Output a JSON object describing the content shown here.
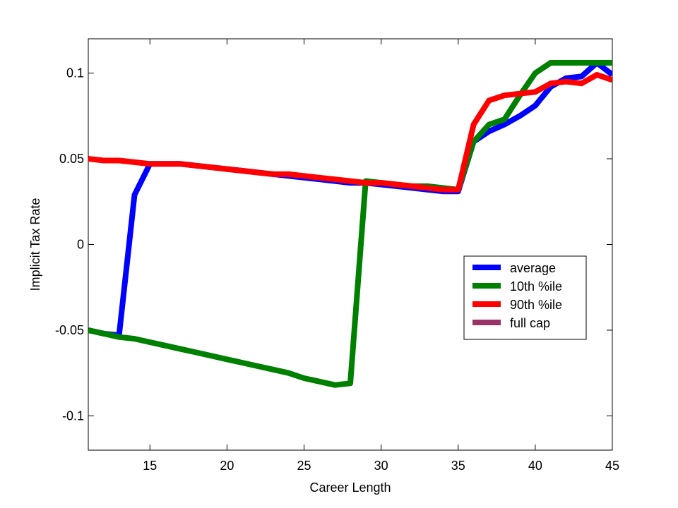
{
  "chart_data": {
    "type": "line",
    "xlabel": "Career Length",
    "ylabel": "Implicit Tax Rate",
    "xlim": [
      11,
      45
    ],
    "ylim": [
      -0.12,
      0.12
    ],
    "xticks": [
      15,
      20,
      25,
      30,
      35,
      40,
      45
    ],
    "xtick_labels": [
      "15",
      "20",
      "25",
      "30",
      "35",
      "40",
      "45"
    ],
    "yticks": [
      0.1,
      0.05,
      0,
      -0.05,
      -0.1
    ],
    "ytick_labels": [
      "0.1",
      "0.05",
      "0",
      "-0.05",
      "-0.1"
    ],
    "grid": false,
    "legend_position": "right, lower-middle",
    "series": [
      {
        "name": "average",
        "color": "#0000ff",
        "points": [
          [
            11,
            -0.05
          ],
          [
            12,
            -0.052
          ],
          [
            13,
            -0.053
          ],
          [
            14,
            0.029
          ],
          [
            15,
            0.047
          ],
          [
            16,
            0.047
          ],
          [
            17,
            0.047
          ],
          [
            18,
            0.046
          ],
          [
            19,
            0.045
          ],
          [
            20,
            0.044
          ],
          [
            21,
            0.043
          ],
          [
            22,
            0.042
          ],
          [
            23,
            0.041
          ],
          [
            24,
            0.04
          ],
          [
            25,
            0.039
          ],
          [
            26,
            0.038
          ],
          [
            27,
            0.037
          ],
          [
            28,
            0.036
          ],
          [
            29,
            0.036
          ],
          [
            30,
            0.035
          ],
          [
            31,
            0.034
          ],
          [
            32,
            0.033
          ],
          [
            33,
            0.032
          ],
          [
            34,
            0.031
          ],
          [
            35,
            0.031
          ],
          [
            36,
            0.06
          ],
          [
            37,
            0.066
          ],
          [
            38,
            0.07
          ],
          [
            39,
            0.075
          ],
          [
            40,
            0.081
          ],
          [
            41,
            0.092
          ],
          [
            42,
            0.097
          ],
          [
            43,
            0.098
          ],
          [
            44,
            0.106
          ],
          [
            45,
            0.099
          ]
        ]
      },
      {
        "name": "10th %ile",
        "color": "#008000",
        "points": [
          [
            11,
            -0.05
          ],
          [
            12,
            -0.052
          ],
          [
            13,
            -0.054
          ],
          [
            14,
            -0.055
          ],
          [
            15,
            -0.057
          ],
          [
            16,
            -0.059
          ],
          [
            17,
            -0.061
          ],
          [
            18,
            -0.063
          ],
          [
            19,
            -0.065
          ],
          [
            20,
            -0.067
          ],
          [
            21,
            -0.069
          ],
          [
            22,
            -0.071
          ],
          [
            23,
            -0.073
          ],
          [
            24,
            -0.075
          ],
          [
            25,
            -0.078
          ],
          [
            26,
            -0.08
          ],
          [
            27,
            -0.082
          ],
          [
            28,
            -0.081
          ],
          [
            29,
            0.037
          ],
          [
            30,
            0.036
          ],
          [
            31,
            0.035
          ],
          [
            32,
            0.034
          ],
          [
            33,
            0.034
          ],
          [
            34,
            0.033
          ],
          [
            35,
            0.032
          ],
          [
            36,
            0.06
          ],
          [
            37,
            0.07
          ],
          [
            38,
            0.073
          ],
          [
            39,
            0.087
          ],
          [
            40,
            0.1
          ],
          [
            41,
            0.106
          ],
          [
            42,
            0.106
          ],
          [
            43,
            0.106
          ],
          [
            44,
            0.106
          ],
          [
            45,
            0.106
          ]
        ]
      },
      {
        "name": "90th %ile",
        "color": "#ff0000",
        "points": [
          [
            11,
            0.05
          ],
          [
            12,
            0.049
          ],
          [
            13,
            0.049
          ],
          [
            14,
            0.048
          ],
          [
            15,
            0.047
          ],
          [
            16,
            0.047
          ],
          [
            17,
            0.047
          ],
          [
            18,
            0.046
          ],
          [
            19,
            0.045
          ],
          [
            20,
            0.044
          ],
          [
            21,
            0.043
          ],
          [
            22,
            0.042
          ],
          [
            23,
            0.041
          ],
          [
            24,
            0.041
          ],
          [
            25,
            0.04
          ],
          [
            26,
            0.039
          ],
          [
            27,
            0.038
          ],
          [
            28,
            0.037
          ],
          [
            29,
            0.036
          ],
          [
            30,
            0.036
          ],
          [
            31,
            0.035
          ],
          [
            32,
            0.034
          ],
          [
            33,
            0.033
          ],
          [
            34,
            0.032
          ],
          [
            35,
            0.032
          ],
          [
            36,
            0.07
          ],
          [
            37,
            0.084
          ],
          [
            38,
            0.087
          ],
          [
            39,
            0.088
          ],
          [
            40,
            0.089
          ],
          [
            41,
            0.094
          ],
          [
            42,
            0.095
          ],
          [
            43,
            0.094
          ],
          [
            44,
            0.099
          ],
          [
            45,
            0.096
          ]
        ]
      },
      {
        "name": "full cap",
        "color": "#993366",
        "points": []
      }
    ]
  }
}
